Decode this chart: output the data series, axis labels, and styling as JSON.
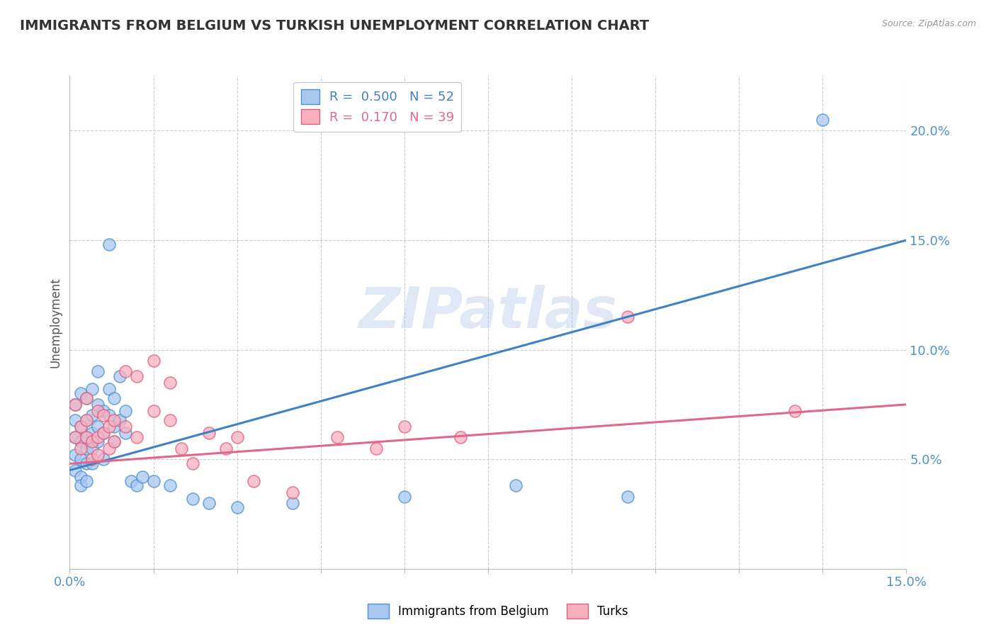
{
  "title": "IMMIGRANTS FROM BELGIUM VS TURKISH UNEMPLOYMENT CORRELATION CHART",
  "source": "Source: ZipAtlas.com",
  "ylabel": "Unemployment",
  "xmin": 0.0,
  "xmax": 0.15,
  "ymin": 0.0,
  "ymax": 0.225,
  "watermark": "ZIPatlas",
  "blue_scatter": [
    [
      0.001,
      0.075
    ],
    [
      0.001,
      0.068
    ],
    [
      0.001,
      0.06
    ],
    [
      0.001,
      0.052
    ],
    [
      0.001,
      0.045
    ],
    [
      0.002,
      0.08
    ],
    [
      0.002,
      0.065
    ],
    [
      0.002,
      0.058
    ],
    [
      0.002,
      0.05
    ],
    [
      0.002,
      0.042
    ],
    [
      0.002,
      0.038
    ],
    [
      0.003,
      0.078
    ],
    [
      0.003,
      0.068
    ],
    [
      0.003,
      0.06
    ],
    [
      0.003,
      0.055
    ],
    [
      0.003,
      0.048
    ],
    [
      0.003,
      0.04
    ],
    [
      0.004,
      0.082
    ],
    [
      0.004,
      0.07
    ],
    [
      0.004,
      0.062
    ],
    [
      0.004,
      0.055
    ],
    [
      0.004,
      0.048
    ],
    [
      0.005,
      0.09
    ],
    [
      0.005,
      0.075
    ],
    [
      0.005,
      0.065
    ],
    [
      0.005,
      0.058
    ],
    [
      0.006,
      0.072
    ],
    [
      0.006,
      0.062
    ],
    [
      0.006,
      0.05
    ],
    [
      0.007,
      0.148
    ],
    [
      0.007,
      0.082
    ],
    [
      0.007,
      0.07
    ],
    [
      0.008,
      0.078
    ],
    [
      0.008,
      0.065
    ],
    [
      0.008,
      0.058
    ],
    [
      0.009,
      0.088
    ],
    [
      0.009,
      0.068
    ],
    [
      0.01,
      0.072
    ],
    [
      0.01,
      0.062
    ],
    [
      0.011,
      0.04
    ],
    [
      0.012,
      0.038
    ],
    [
      0.013,
      0.042
    ],
    [
      0.015,
      0.04
    ],
    [
      0.018,
      0.038
    ],
    [
      0.022,
      0.032
    ],
    [
      0.025,
      0.03
    ],
    [
      0.03,
      0.028
    ],
    [
      0.04,
      0.03
    ],
    [
      0.06,
      0.033
    ],
    [
      0.08,
      0.038
    ],
    [
      0.1,
      0.033
    ],
    [
      0.135,
      0.205
    ]
  ],
  "pink_scatter": [
    [
      0.001,
      0.075
    ],
    [
      0.001,
      0.06
    ],
    [
      0.002,
      0.065
    ],
    [
      0.002,
      0.055
    ],
    [
      0.003,
      0.078
    ],
    [
      0.003,
      0.068
    ],
    [
      0.003,
      0.06
    ],
    [
      0.004,
      0.058
    ],
    [
      0.004,
      0.05
    ],
    [
      0.005,
      0.072
    ],
    [
      0.005,
      0.06
    ],
    [
      0.005,
      0.052
    ],
    [
      0.006,
      0.07
    ],
    [
      0.006,
      0.062
    ],
    [
      0.007,
      0.065
    ],
    [
      0.007,
      0.055
    ],
    [
      0.008,
      0.068
    ],
    [
      0.008,
      0.058
    ],
    [
      0.01,
      0.09
    ],
    [
      0.01,
      0.065
    ],
    [
      0.012,
      0.088
    ],
    [
      0.012,
      0.06
    ],
    [
      0.015,
      0.095
    ],
    [
      0.015,
      0.072
    ],
    [
      0.018,
      0.085
    ],
    [
      0.018,
      0.068
    ],
    [
      0.02,
      0.055
    ],
    [
      0.022,
      0.048
    ],
    [
      0.025,
      0.062
    ],
    [
      0.028,
      0.055
    ],
    [
      0.03,
      0.06
    ],
    [
      0.033,
      0.04
    ],
    [
      0.04,
      0.035
    ],
    [
      0.048,
      0.06
    ],
    [
      0.055,
      0.055
    ],
    [
      0.06,
      0.065
    ],
    [
      0.07,
      0.06
    ],
    [
      0.1,
      0.115
    ],
    [
      0.13,
      0.072
    ]
  ],
  "blue_line": {
    "x_start": 0.0,
    "y_start": 0.045,
    "x_end": 0.15,
    "y_end": 0.15
  },
  "pink_line": {
    "x_start": 0.0,
    "y_start": 0.048,
    "x_end": 0.15,
    "y_end": 0.075
  },
  "blue_fill_color": "#A8C8F0",
  "blue_edge_color": "#5090D0",
  "pink_fill_color": "#F8B0C0",
  "pink_edge_color": "#E06080",
  "blue_line_color": "#4080C8",
  "pink_line_color": "#E06888",
  "yticks": [
    0.05,
    0.1,
    0.15,
    0.2
  ],
  "ytick_labels": [
    "5.0%",
    "10.0%",
    "15.0%",
    "20.0%"
  ],
  "grid_color": "#CCCCCC",
  "background_color": "#FFFFFF",
  "title_color": "#333333",
  "title_fontsize": 14,
  "axis_label_color": "#555555",
  "tick_label_color": "#5090D0",
  "source_color": "#999999"
}
